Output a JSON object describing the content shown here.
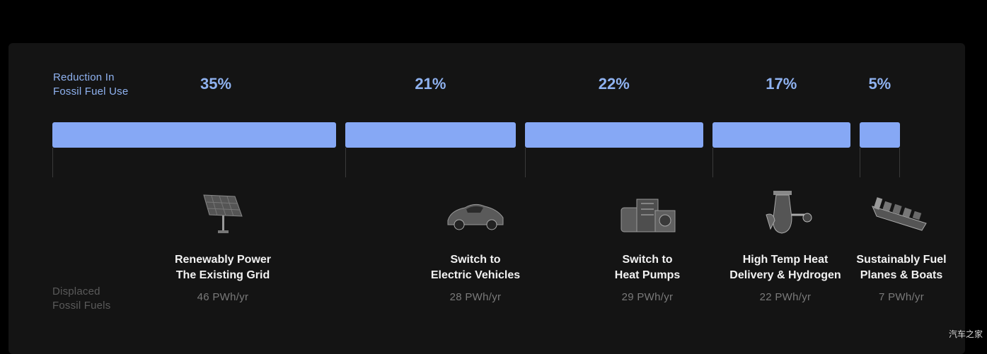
{
  "left_labels": {
    "reduction": [
      "Reduction In",
      "Fossil Fuel Use"
    ],
    "displaced": [
      "Displaced",
      "Fossil Fuels"
    ]
  },
  "colors": {
    "accent": "#86a8f5",
    "label": "#8fb2f0",
    "background": "#141414"
  },
  "categories": [
    {
      "percent": "35%",
      "title_lines": [
        "Renewably Power",
        "The Existing Grid"
      ],
      "energy": "46 PWh/yr",
      "icon": "solar-panel-icon"
    },
    {
      "percent": "21%",
      "title_lines": [
        "Switch to",
        "Electric Vehicles"
      ],
      "energy": "28 PWh/yr",
      "icon": "electric-car-icon"
    },
    {
      "percent": "22%",
      "title_lines": [
        "Switch to",
        "Heat Pumps"
      ],
      "energy": "29 PWh/yr",
      "icon": "heat-pump-icon"
    },
    {
      "percent": "17%",
      "title_lines": [
        "High Temp Heat",
        "Delivery & Hydrogen"
      ],
      "energy": "22 PWh/yr",
      "icon": "industrial-heat-icon"
    },
    {
      "percent": "5%",
      "title_lines": [
        "Sustainably Fuel",
        "Planes & Boats"
      ],
      "energy": "7 PWh/yr",
      "icon": "cargo-ship-icon"
    }
  ],
  "chart_data": {
    "type": "bar",
    "orientation": "horizontal-stacked",
    "categories": [
      "Renewably Power The Existing Grid",
      "Switch to Electric Vehicles",
      "Switch to Heat Pumps",
      "High Temp Heat Delivery & Hydrogen",
      "Sustainably Fuel Planes & Boats"
    ],
    "values": [
      35,
      21,
      22,
      17,
      5
    ],
    "displaced_pwh_per_year": [
      46,
      28,
      29,
      22,
      7
    ],
    "title": "",
    "xlabel": "",
    "ylabel": "",
    "grid": false
  },
  "watermark": "汽车之家"
}
